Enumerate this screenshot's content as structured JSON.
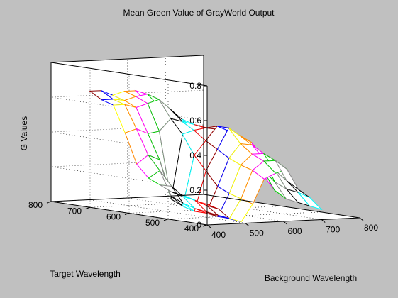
{
  "figure": {
    "background": "#c0c0c0",
    "axes_background": "#ffffff",
    "frame_color": "#000000"
  },
  "chart_data": {
    "type": "surface",
    "title": "Mean Green Value of GrayWorld Output",
    "xlabel": "Background Wavelength",
    "ylabel": "Target Wavelength",
    "zlabel": "G Values",
    "xlim": [
      400,
      800
    ],
    "ylim": [
      400,
      800
    ],
    "zlim": [
      0,
      0.8
    ],
    "x_ticks": [
      "400",
      "500",
      "600",
      "700",
      "800"
    ],
    "y_ticks": [
      "400",
      "500",
      "600",
      "700",
      "800"
    ],
    "z_ticks": [
      "0",
      "0.2",
      "0.4",
      "0.6",
      "0.8"
    ],
    "grid": true,
    "background_wavelengths": [
      420,
      450,
      480,
      510,
      540,
      570,
      600,
      630,
      660,
      690,
      720
    ],
    "target_wavelengths": [
      420,
      450,
      480,
      510,
      540,
      570,
      600,
      630,
      660,
      690,
      720
    ],
    "G_values": [
      [
        0.11,
        0.08,
        0.02,
        0.0,
        0.1,
        0.24,
        0.27,
        0.29,
        0.17,
        0.12,
        0.05
      ],
      [
        0.12,
        0.09,
        0.03,
        0.01,
        0.12,
        0.28,
        0.33,
        0.33,
        0.21,
        0.14,
        0.06
      ],
      [
        0.14,
        0.11,
        0.04,
        0.01,
        0.14,
        0.3,
        0.36,
        0.36,
        0.26,
        0.15,
        0.07
      ],
      [
        0.15,
        0.12,
        0.05,
        0.02,
        0.17,
        0.33,
        0.41,
        0.4,
        0.32,
        0.18,
        0.08
      ],
      [
        0.18,
        0.17,
        0.07,
        0.02,
        0.25,
        0.37,
        0.49,
        0.44,
        0.4,
        0.24,
        0.12
      ],
      [
        0.21,
        0.25,
        0.1,
        0.04,
        0.33,
        0.41,
        0.49,
        0.46,
        0.43,
        0.3,
        0.2
      ],
      [
        0.28,
        0.33,
        0.3,
        0.07,
        0.44,
        0.46,
        0.47,
        0.46,
        0.42,
        0.34,
        0.3
      ],
      [
        0.45,
        0.47,
        0.44,
        0.45,
        0.52,
        0.5,
        0.48,
        0.46,
        0.4,
        0.36,
        0.34
      ],
      [
        0.6,
        0.6,
        0.58,
        0.6,
        0.62,
        0.56,
        0.5,
        0.45,
        0.38,
        0.36,
        0.35
      ],
      [
        0.62,
        0.62,
        0.61,
        0.63,
        0.64,
        0.57,
        0.5,
        0.45,
        0.36,
        0.34,
        0.32
      ],
      [
        0.66,
        0.66,
        0.63,
        0.65,
        0.65,
        0.58,
        0.51,
        0.44,
        0.33,
        0.31,
        0.3
      ]
    ],
    "mesh_palette": [
      "#ff0000",
      "#ffff00",
      "#00cc00",
      "#00ffff",
      "#0000ff",
      "#ff00ff",
      "#000000",
      "#8b0000",
      "#ff8800",
      "#888888"
    ]
  }
}
